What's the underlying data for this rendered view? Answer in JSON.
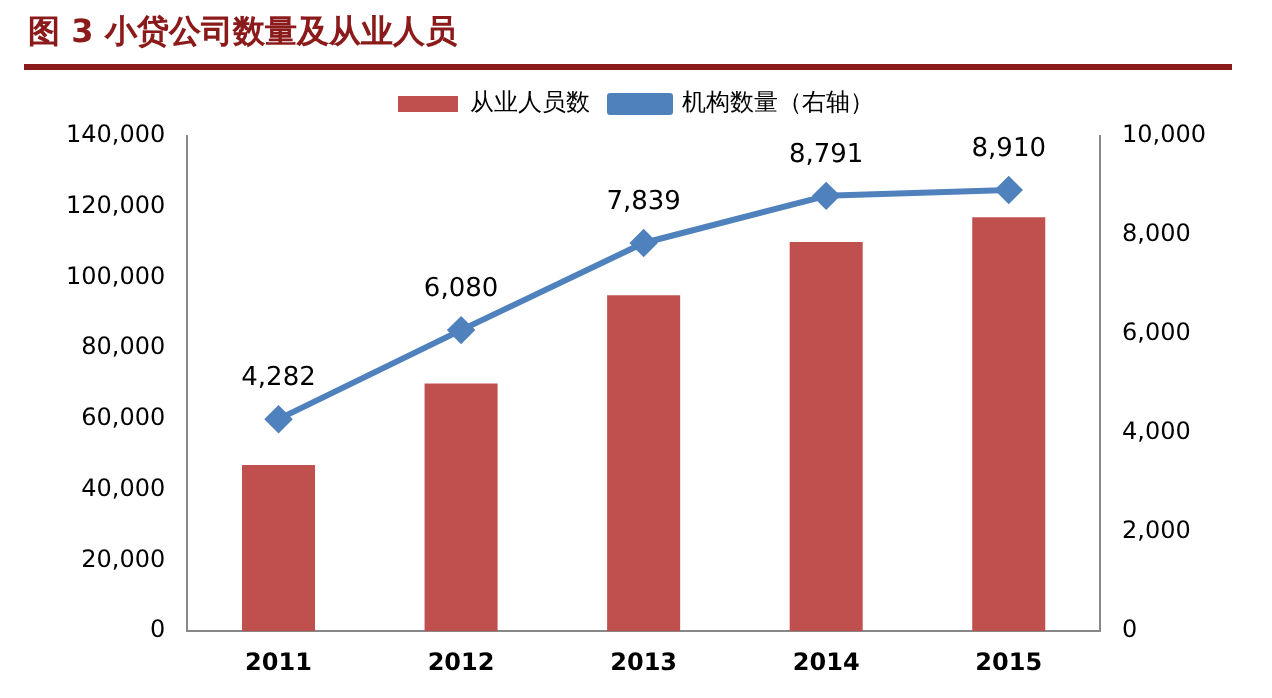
{
  "chart_data": {
    "type": "bar",
    "title": "图 3 小贷公司数量及从业人员",
    "categories": [
      "2011",
      "2012",
      "2013",
      "2014",
      "2015"
    ],
    "series": [
      {
        "name": "从业人员数",
        "color": "#c0504d",
        "values": [
          47000,
          70000,
          95000,
          110000,
          117000
        ]
      },
      {
        "name": "机构数量（右轴）",
        "type": "line",
        "axis": "y2",
        "color": "#4f81bd",
        "values": [
          4282,
          6080,
          7839,
          8791,
          8910
        ],
        "value_labels": [
          "4,282",
          "6,080",
          "7,839",
          "8,791",
          "8,910"
        ],
        "marker": "diamond"
      }
    ],
    "ylim": [
      0,
      140000
    ],
    "yticks": [
      0,
      {
        "value": 20000,
        "label": "20,000"
      },
      {
        "value": 40000,
        "label": "40,000"
      },
      {
        "value": 60000,
        "label": "60,000"
      },
      {
        "value": 80000,
        "label": "80,000"
      },
      {
        "value": 100000,
        "label": "100,000"
      },
      {
        "value": 120000,
        "label": "120,000"
      },
      {
        "value": 140000,
        "label": "140,000"
      }
    ],
    "y2lim": [
      0,
      10000
    ],
    "y2ticks": [
      0,
      {
        "value": 2000,
        "label": "2,000"
      },
      {
        "value": 4000,
        "label": "4,000"
      },
      {
        "value": 6000,
        "label": "6,000"
      },
      {
        "value": 8000,
        "label": "8,000"
      },
      {
        "value": 10000,
        "label": "10,000"
      }
    ],
    "grid": false,
    "legend": "top"
  }
}
